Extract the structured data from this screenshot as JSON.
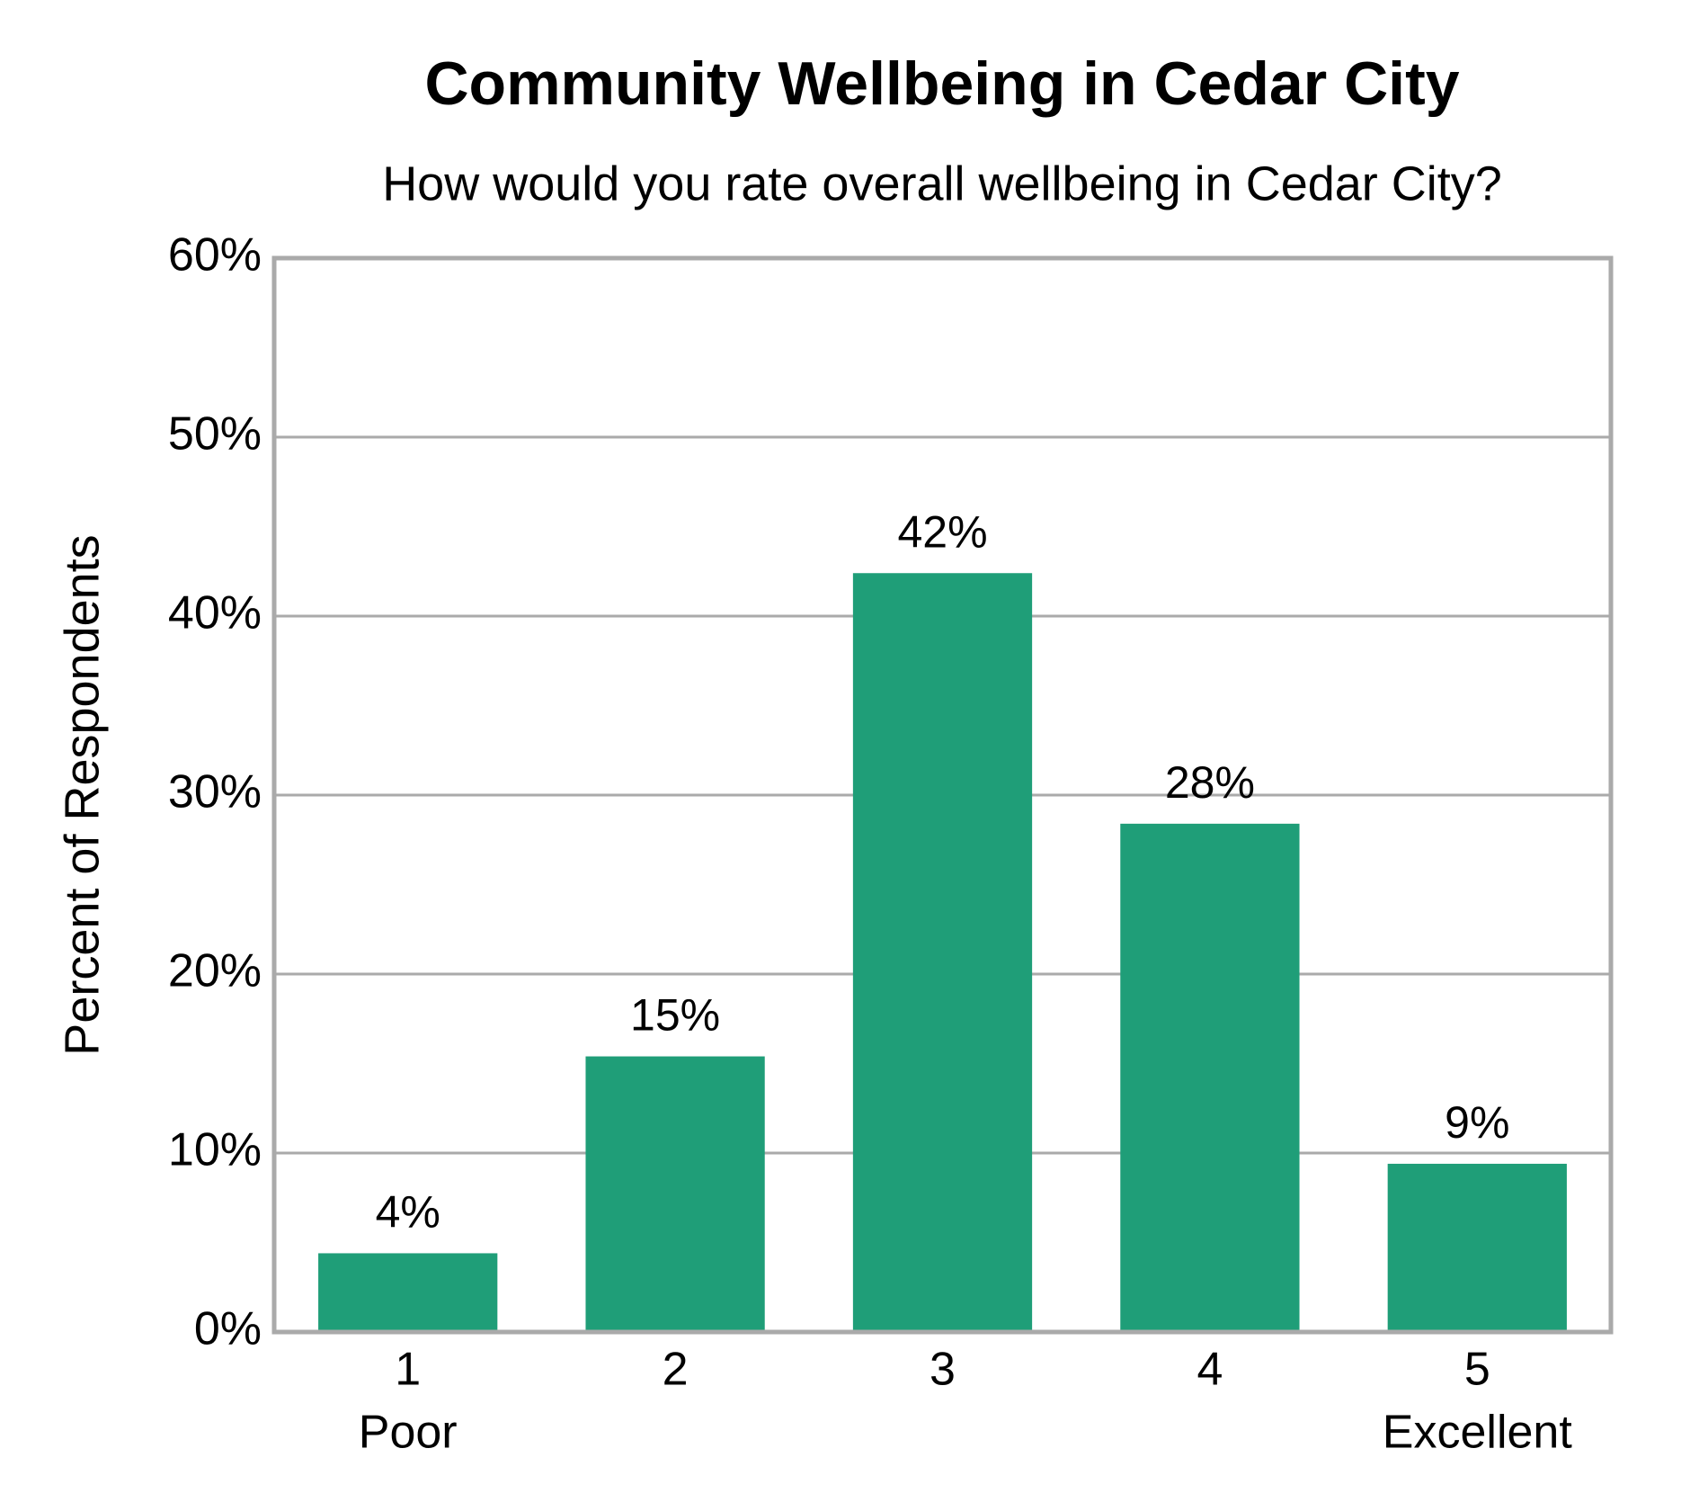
{
  "chart_data": {
    "type": "bar",
    "title": "Community Wellbeing in Cedar City",
    "subtitle": "How would you rate overall wellbeing in Cedar City?",
    "y_label": "Percent of Respondents",
    "categories": [
      "1",
      "2",
      "3",
      "4",
      "5"
    ],
    "category_sublabels": [
      "Poor",
      null,
      null,
      null,
      "Excellent"
    ],
    "values": [
      4.4,
      15.4,
      42.4,
      28.4,
      9.4
    ],
    "value_labels": [
      "4%",
      "15%",
      "42%",
      "28%",
      "9%"
    ],
    "color": "#1f9e78",
    "ylim": [
      0,
      60
    ],
    "yticks": [
      {
        "value": 0,
        "label": "0%"
      },
      {
        "value": 10,
        "label": "10%"
      },
      {
        "value": 20,
        "label": "20%"
      },
      {
        "value": 30,
        "label": "30%"
      },
      {
        "value": 40,
        "label": "40%"
      },
      {
        "value": 50,
        "label": "50%"
      },
      {
        "value": 60,
        "label": "60%"
      }
    ],
    "grid": true
  }
}
